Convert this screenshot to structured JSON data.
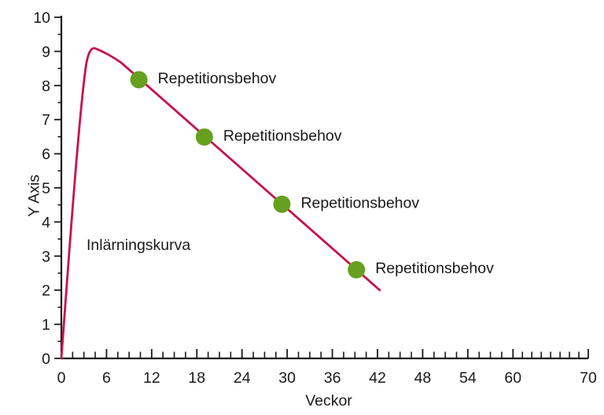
{
  "chart_data": {
    "type": "line",
    "title": "",
    "xlabel": "Veckor",
    "ylabel": "Y Axis",
    "xlim": [
      0,
      70
    ],
    "ylim": [
      0,
      10
    ],
    "grid": false,
    "legend_position": "none",
    "x_major_ticks": [
      0,
      6,
      12,
      18,
      24,
      30,
      36,
      42,
      48,
      54,
      60,
      70
    ],
    "x_tick_labels": [
      "0",
      "6",
      "12",
      "18",
      "24",
      "30",
      "36",
      "42",
      "48",
      "54",
      "60",
      "70"
    ],
    "y_major_ticks": [
      0,
      1,
      2,
      3,
      4,
      5,
      6,
      7,
      8,
      9,
      10
    ],
    "y_tick_labels": [
      "0",
      "1",
      "2",
      "3",
      "4",
      "5",
      "6",
      "7",
      "8",
      "9",
      "10"
    ],
    "series": [
      {
        "name": "Inlärningskurva",
        "color": "#c8114b",
        "start": [
          0,
          0
        ],
        "peak": [
          4.2,
          9.1
        ],
        "end": [
          42.3,
          2.0
        ],
        "path": {
          "move": [
            0,
            0
          ],
          "beziers": [
            [
              1.0,
              3.0,
              2.4,
              7.3,
              3.3,
              8.62
            ],
            [
              3.65,
              9.05,
              4.1,
              9.13,
              4.6,
              9.08
            ],
            [
              5.4,
              9.0,
              6.5,
              8.9,
              8.0,
              8.66
            ]
          ],
          "line_to": [
            42.3,
            2.0
          ]
        }
      }
    ],
    "points": [
      {
        "x": 10.3,
        "y": 8.17,
        "label": "Repetitionsbehov"
      },
      {
        "x": 19.0,
        "y": 6.49,
        "label": "Repetitionsbehov"
      },
      {
        "x": 29.3,
        "y": 4.52,
        "label": "Repetitionsbehov"
      },
      {
        "x": 39.2,
        "y": 2.6,
        "label": "Repetitionsbehov"
      }
    ],
    "annotation": {
      "text": "Inlärningskurva",
      "x": 3.4,
      "y": 3.3
    },
    "colors": {
      "curve": "#c8114b",
      "point": "#66a01f",
      "axis": "#1a1a1a",
      "text": "#1a1a1a",
      "background": "#ffffff"
    }
  }
}
